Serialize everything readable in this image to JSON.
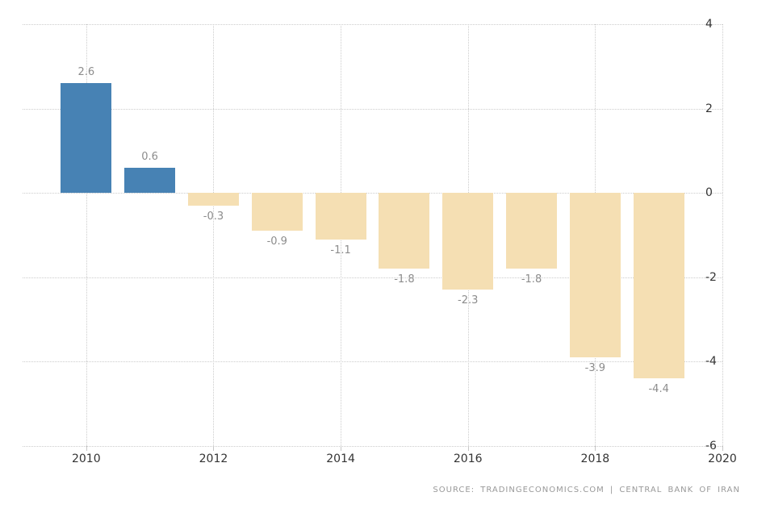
{
  "chart_data": {
    "type": "bar",
    "title": "",
    "xlabel": "",
    "ylabel": "",
    "categories": [
      2010,
      2011,
      2012,
      2013,
      2014,
      2015,
      2016,
      2017,
      2018,
      2019
    ],
    "values": [
      2.6,
      0.6,
      -0.3,
      -0.9,
      -1.1,
      -1.8,
      -2.3,
      -1.8,
      -3.9,
      -4.4
    ],
    "value_labels": [
      "2.6",
      "0.6",
      "-0.3",
      "-0.9",
      "-1.1",
      "-1.8",
      "-2.3",
      "-1.8",
      "-3.9",
      "-4.4"
    ],
    "x_axis": {
      "min": 2009,
      "max": 2020,
      "ticks": [
        2010,
        2012,
        2014,
        2016,
        2018,
        2020
      ]
    },
    "y_axis": {
      "min": -6,
      "max": 4,
      "ticks": [
        4,
        2,
        0,
        -2,
        -4,
        -6
      ],
      "position": "right"
    },
    "grid": {
      "style": "dotted",
      "horizontal": true,
      "vertical": true
    },
    "legend": "none",
    "colors": {
      "positive_bar": "#4782B4",
      "negative_bar": "#F5DFB3",
      "grid": "#cccccc",
      "value_label": "#8c8c8c",
      "axis_label": "#333333",
      "source_text": "#999999",
      "background": "#ffffff"
    }
  },
  "footer": {
    "source_text": "SOURCE: TRADINGECONOMICS.COM | CENTRAL BANK OF IRAN"
  }
}
